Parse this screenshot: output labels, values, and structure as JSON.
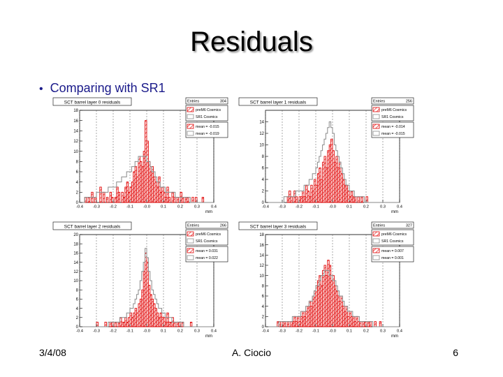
{
  "slide": {
    "title": "Residuals",
    "bullet": "Comparing with SR1",
    "footer_left": "3/4/08",
    "footer_center": "A. Ciocio",
    "footer_right": "6"
  },
  "colors": {
    "red": "#e00000",
    "gray": "#8a8a8a",
    "bullet": "#1a1a8a"
  },
  "chart_data": [
    {
      "type": "bar",
      "title": "SCT barrel layer 0 residuals",
      "entries_label": "Entries",
      "entries": 304,
      "xlabel": "mm",
      "xlim": [
        -0.4,
        0.4
      ],
      "ylim": [
        0,
        18
      ],
      "yticks": [
        0,
        2,
        4,
        6,
        8,
        10,
        12,
        14,
        16,
        18
      ],
      "xticks": [
        -0.4,
        -0.3,
        -0.2,
        -0.1,
        -0.0,
        0.1,
        0.2,
        0.3,
        0.4
      ],
      "legend": [
        "preM6 Cosmics",
        "SR1 Cosmics",
        "mean = -0.015",
        "mean = -0.019"
      ],
      "series": [
        {
          "name": "preM6 Cosmics",
          "values": [
            0,
            0,
            0,
            1,
            0,
            1,
            0,
            2,
            0,
            1,
            0,
            0,
            3,
            0,
            2,
            0,
            1,
            0,
            2,
            1,
            0,
            1,
            3,
            2,
            0,
            2,
            1,
            3,
            4,
            2,
            3,
            4,
            6,
            7,
            5,
            9,
            8,
            7,
            10,
            16,
            12,
            8,
            6,
            7,
            5,
            4,
            3,
            5,
            2,
            3,
            2,
            1,
            3,
            1,
            0,
            2,
            1,
            0,
            1,
            0,
            2,
            1,
            0,
            1,
            1,
            0,
            0,
            1,
            0,
            1,
            0,
            0,
            0,
            1,
            0,
            0,
            0,
            0,
            0,
            0
          ]
        },
        {
          "name": "SR1 Cosmics",
          "values": [
            0,
            0,
            0,
            1,
            1,
            1,
            1,
            1,
            1,
            1,
            2,
            2,
            2,
            2,
            2,
            2,
            2,
            3,
            3,
            3,
            3,
            3,
            4,
            4,
            4,
            5,
            5,
            5,
            6,
            6,
            6,
            7,
            7,
            8,
            8,
            9,
            9,
            9,
            9,
            9,
            8,
            8,
            7,
            6,
            6,
            5,
            4,
            4,
            3,
            3,
            3,
            2,
            2,
            2,
            2,
            2,
            2,
            1,
            1,
            1,
            1,
            1,
            1,
            1,
            1,
            1,
            0,
            0,
            0,
            0,
            0,
            0,
            0,
            0,
            0,
            0,
            0,
            0,
            0,
            0
          ]
        }
      ]
    },
    {
      "type": "bar",
      "title": "SCT barrel layer 1 residuals",
      "entries_label": "Entries",
      "entries": 256,
      "xlabel": "mm",
      "xlim": [
        -0.4,
        0.4
      ],
      "ylim": [
        0,
        16
      ],
      "yticks": [
        0,
        2,
        4,
        6,
        8,
        10,
        12,
        14
      ],
      "xticks": [
        -0.4,
        -0.3,
        -0.2,
        -0.1,
        -0.0,
        0.1,
        0.2,
        0.3,
        0.4
      ],
      "legend": [
        "preM6 Cosmics",
        "SR1 Cosmics",
        "mean = -0.014",
        "mean = -0.015"
      ],
      "series": [
        {
          "name": "preM6 Cosmics",
          "values": [
            0,
            0,
            0,
            0,
            0,
            0,
            0,
            0,
            0,
            0,
            0,
            0,
            0,
            1,
            2,
            1,
            0,
            2,
            1,
            0,
            1,
            1,
            2,
            1,
            3,
            2,
            1,
            3,
            2,
            4,
            3,
            5,
            6,
            4,
            7,
            8,
            6,
            9,
            10,
            11,
            9,
            7,
            8,
            6,
            7,
            5,
            4,
            3,
            3,
            2,
            1,
            2,
            1,
            1,
            0,
            1,
            0,
            1,
            0,
            0,
            1,
            0,
            0,
            0,
            0,
            0,
            0,
            0,
            0,
            0,
            0,
            0,
            0,
            0,
            0,
            0,
            0,
            0,
            0,
            0
          ]
        },
        {
          "name": "SR1 Cosmics",
          "values": [
            0,
            0,
            0,
            0,
            0,
            0,
            0,
            0,
            0,
            0,
            0,
            1,
            1,
            1,
            1,
            1,
            1,
            1,
            2,
            2,
            2,
            2,
            2,
            3,
            3,
            3,
            4,
            4,
            5,
            5,
            6,
            7,
            8,
            9,
            10,
            11,
            12,
            13,
            14,
            13,
            12,
            10,
            9,
            8,
            7,
            6,
            5,
            4,
            3,
            3,
            2,
            2,
            2,
            1,
            1,
            1,
            1,
            1,
            1,
            0,
            0,
            0,
            0,
            0,
            0,
            0,
            0,
            0,
            0,
            0,
            0,
            0,
            0,
            0,
            0,
            0,
            0,
            0,
            0,
            0
          ]
        }
      ]
    },
    {
      "type": "bar",
      "title": "SCT barrel layer 2 residuals",
      "entries_label": "Entries",
      "entries": 266,
      "xlabel": "mm",
      "xlim": [
        -0.4,
        0.4
      ],
      "ylim": [
        0,
        20
      ],
      "yticks": [
        0,
        2,
        4,
        6,
        8,
        10,
        12,
        14,
        16,
        18,
        20
      ],
      "xticks": [
        -0.4,
        -0.3,
        -0.2,
        -0.1,
        -0.0,
        0.1,
        0.2,
        0.3,
        0.4
      ],
      "legend": [
        "preM6 Cosmics",
        "SR1 Cosmics",
        "mean = 0.031",
        "mean = 0.022"
      ],
      "series": [
        {
          "name": "preM6 Cosmics",
          "values": [
            0,
            0,
            0,
            0,
            0,
            0,
            0,
            0,
            0,
            0,
            1,
            0,
            0,
            0,
            0,
            1,
            0,
            0,
            1,
            1,
            0,
            1,
            0,
            1,
            2,
            1,
            1,
            2,
            1,
            2,
            3,
            2,
            3,
            4,
            3,
            5,
            6,
            8,
            12,
            16,
            14,
            9,
            7,
            6,
            5,
            4,
            3,
            2,
            3,
            2,
            2,
            1,
            3,
            1,
            1,
            2,
            1,
            0,
            1,
            1,
            0,
            1,
            0,
            0,
            0,
            0,
            1,
            0,
            0,
            0,
            0,
            0,
            0,
            0,
            0,
            0,
            0,
            0,
            0,
            0
          ]
        },
        {
          "name": "SR1 Cosmics",
          "values": [
            0,
            0,
            0,
            0,
            0,
            0,
            0,
            0,
            0,
            0,
            0,
            0,
            0,
            0,
            0,
            0,
            0,
            1,
            1,
            1,
            1,
            1,
            1,
            1,
            2,
            2,
            2,
            2,
            3,
            3,
            4,
            4,
            5,
            6,
            7,
            8,
            10,
            12,
            14,
            17,
            15,
            12,
            10,
            8,
            7,
            6,
            5,
            4,
            4,
            3,
            3,
            2,
            2,
            2,
            2,
            1,
            1,
            1,
            1,
            1,
            1,
            1,
            0,
            0,
            0,
            0,
            0,
            0,
            0,
            0,
            0,
            0,
            0,
            0,
            0,
            0,
            0,
            0,
            0,
            0
          ]
        }
      ]
    },
    {
      "type": "bar",
      "title": "SCT barrel layer 3 residuals",
      "entries_label": "Entries",
      "entries": 327,
      "xlabel": "mm",
      "xlim": [
        -0.4,
        0.4
      ],
      "ylim": [
        0,
        18
      ],
      "yticks": [
        0,
        2,
        4,
        6,
        8,
        10,
        12,
        14,
        16,
        18
      ],
      "xticks": [
        -0.4,
        -0.3,
        -0.2,
        -0.1,
        -0.0,
        0.1,
        0.2,
        0.3,
        0.4
      ],
      "legend": [
        "preM6 Cosmics",
        "SR1 Cosmics",
        "mean = 0.007",
        "mean = 0.001"
      ],
      "series": [
        {
          "name": "preM6 Cosmics",
          "values": [
            0,
            0,
            0,
            0,
            0,
            0,
            0,
            1,
            1,
            0,
            1,
            1,
            0,
            1,
            0,
            1,
            1,
            2,
            1,
            2,
            1,
            2,
            3,
            2,
            3,
            4,
            5,
            4,
            6,
            7,
            8,
            9,
            10,
            8,
            11,
            12,
            10,
            13,
            12,
            9,
            10,
            8,
            7,
            6,
            5,
            6,
            4,
            3,
            4,
            2,
            3,
            2,
            2,
            1,
            2,
            1,
            1,
            0,
            1,
            1,
            0,
            1,
            1,
            0,
            0,
            1,
            0,
            0,
            1,
            0,
            0,
            0,
            0,
            0,
            0,
            0,
            0,
            0,
            0,
            0
          ]
        },
        {
          "name": "SR1 Cosmics",
          "values": [
            0,
            0,
            0,
            0,
            0,
            0,
            0,
            0,
            1,
            1,
            1,
            1,
            1,
            1,
            1,
            1,
            2,
            2,
            2,
            2,
            2,
            3,
            3,
            3,
            4,
            4,
            5,
            5,
            6,
            7,
            8,
            8,
            9,
            10,
            10,
            11,
            11,
            11,
            10,
            10,
            9,
            9,
            8,
            7,
            6,
            6,
            5,
            4,
            4,
            3,
            3,
            3,
            2,
            2,
            2,
            2,
            1,
            1,
            1,
            1,
            1,
            1,
            1,
            1,
            0,
            0,
            0,
            0,
            0,
            0,
            0,
            0,
            0,
            0,
            0,
            0,
            0,
            0,
            0,
            0
          ]
        }
      ]
    }
  ]
}
